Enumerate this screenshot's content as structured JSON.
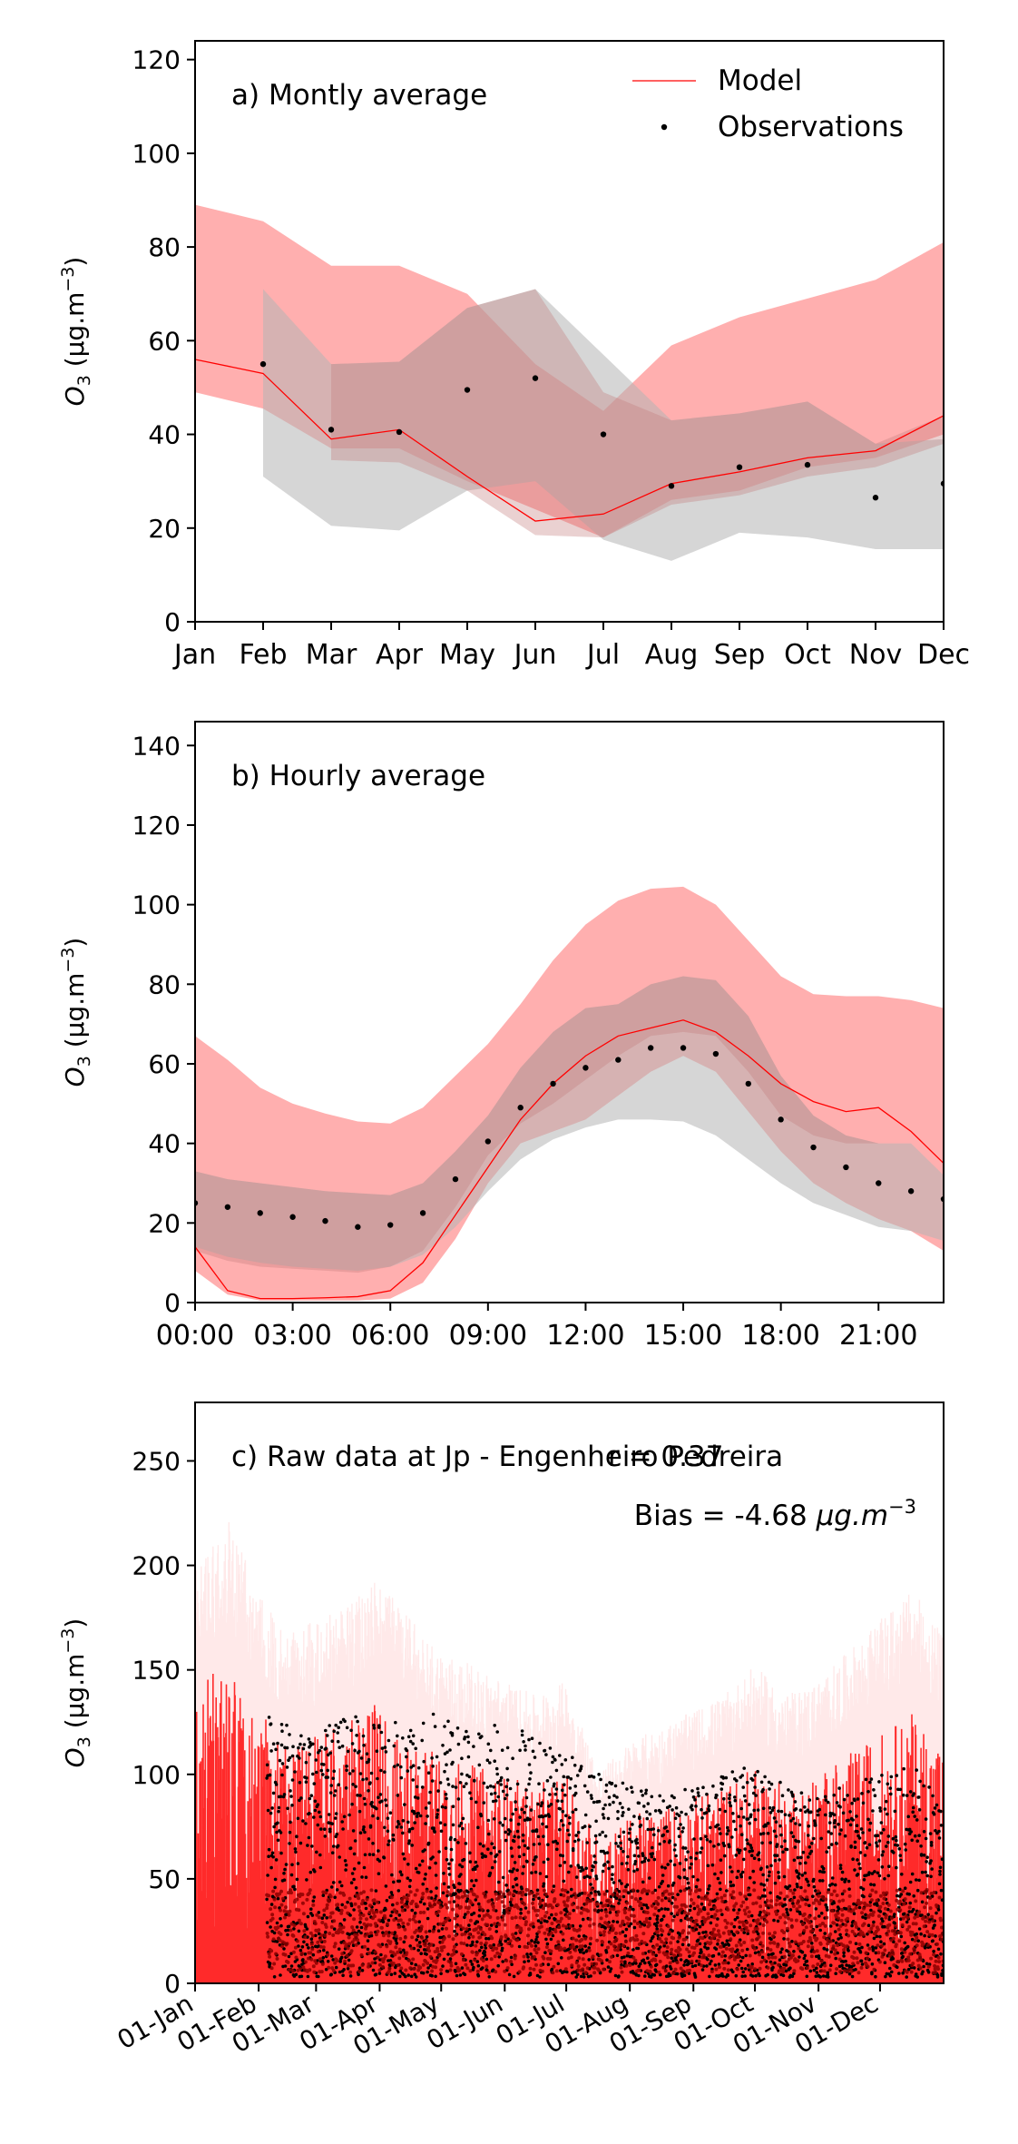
{
  "chart_data": [
    {
      "type": "line",
      "panel_label": "a) Montly average",
      "ylabel": "O",
      "ylabel_sub": "3",
      "ylabel_units": " (μg.m",
      "ylabel_exp": "−3",
      "ylabel_close": ")",
      "ylim": [
        0,
        124
      ],
      "yticks": [
        0,
        20,
        40,
        60,
        80,
        100,
        120
      ],
      "ytick_labels": [
        "0",
        "20",
        "40",
        "60",
        "80",
        "100",
        "120"
      ],
      "xlim": [
        1,
        12
      ],
      "xticks": [
        1,
        2,
        3,
        4,
        5,
        6,
        7,
        8,
        9,
        10,
        11,
        12
      ],
      "xtick_labels": [
        "Jan",
        "Feb",
        "Mar",
        "Apr",
        "May",
        "Jun",
        "Jul",
        "Aug",
        "Sep",
        "Oct",
        "Nov",
        "Dec"
      ],
      "legend": {
        "position": "top-right",
        "entries": [
          "Model",
          "Observations"
        ]
      },
      "model_band_outer": {
        "x": [
          1,
          2,
          3,
          4,
          5,
          6,
          7,
          8,
          9,
          10,
          11,
          12
        ],
        "low": [
          49,
          45.5,
          37,
          37,
          30,
          24,
          18,
          26,
          28,
          33,
          35,
          40
        ],
        "high": [
          89,
          85.5,
          76,
          76,
          70,
          55,
          45,
          59,
          65,
          69,
          73,
          81
        ]
      },
      "model_band_inner": {
        "x": [
          1,
          2,
          3,
          4,
          5,
          6,
          7,
          8,
          9,
          10,
          11,
          12
        ],
        "low": [
          null,
          null,
          34.5,
          34,
          28,
          18.5,
          18,
          25,
          27,
          31,
          33,
          38
        ],
        "high": [
          null,
          null,
          55,
          55.5,
          67,
          71,
          49,
          43,
          44.5,
          47,
          38,
          44
        ]
      },
      "obs_band": {
        "x": [
          2,
          3,
          4,
          5,
          6,
          7,
          8,
          9,
          10,
          11,
          12
        ],
        "low": [
          31,
          20.5,
          19.5,
          28,
          30,
          17.5,
          13,
          19,
          18,
          15.5,
          15.5
        ],
        "high": [
          71,
          55,
          55.5,
          67,
          71,
          57,
          43,
          44.5,
          47,
          38,
          39
        ]
      },
      "model_line": {
        "x": [
          1,
          2,
          3,
          4,
          5,
          6,
          7,
          8,
          9,
          10,
          11,
          12
        ],
        "y": [
          56,
          53,
          39,
          41,
          31,
          21.5,
          23,
          29.5,
          32,
          35,
          36.5,
          44
        ]
      },
      "observations": {
        "x": [
          2,
          3,
          4,
          5,
          6,
          7,
          8,
          9,
          10,
          11,
          12
        ],
        "y": [
          55,
          41,
          40.5,
          49.5,
          52,
          40,
          29,
          33,
          33.5,
          26.5,
          29.5
        ]
      }
    },
    {
      "type": "line",
      "panel_label": "b) Hourly average",
      "ylabel": "O",
      "ylabel_sub": "3",
      "ylabel_units": " (μg.m",
      "ylabel_exp": "−3",
      "ylabel_close": ")",
      "ylim": [
        0,
        146
      ],
      "yticks": [
        0,
        20,
        40,
        60,
        80,
        100,
        120,
        140
      ],
      "ytick_labels": [
        "0",
        "20",
        "40",
        "60",
        "80",
        "100",
        "120",
        "140"
      ],
      "xlim": [
        0,
        23
      ],
      "xticks": [
        0,
        3,
        6,
        9,
        12,
        15,
        18,
        21
      ],
      "xtick_labels": [
        "00:00",
        "03:00",
        "06:00",
        "09:00",
        "12:00",
        "15:00",
        "18:00",
        "21:00"
      ],
      "model_band_outer": {
        "x": [
          0,
          1,
          2,
          3,
          4,
          5,
          6,
          7,
          8,
          9,
          10,
          11,
          12,
          13,
          14,
          15,
          16,
          17,
          18,
          19,
          20,
          21,
          22,
          23
        ],
        "low": [
          8,
          2,
          0.5,
          0.5,
          0.5,
          0.5,
          1,
          5,
          16,
          30,
          40,
          43,
          46,
          52,
          58,
          62,
          58,
          48,
          38,
          30,
          25,
          21,
          18,
          13
        ],
        "high": [
          67,
          61,
          54,
          50,
          47.5,
          45.5,
          45,
          49,
          57,
          65,
          75,
          86,
          95,
          101,
          104,
          104.5,
          100,
          91,
          82,
          77.5,
          77,
          77,
          76,
          74
        ]
      },
      "model_band_inner": {
        "x": [
          0,
          1,
          2,
          3,
          4,
          5,
          6,
          7,
          8,
          9,
          10,
          11,
          12,
          13,
          14,
          15,
          16,
          17,
          18,
          19,
          20,
          21,
          22,
          23
        ],
        "low": [
          13,
          10.5,
          9,
          8.5,
          8,
          7.5,
          9,
          13,
          24,
          37,
          45,
          50,
          56,
          62,
          67,
          68,
          67,
          58,
          47,
          42,
          40,
          40,
          40,
          32
        ],
        "high": [
          33,
          31,
          30,
          29,
          28,
          27.5,
          27,
          30,
          38,
          47,
          59,
          68,
          74,
          75,
          80,
          82,
          81,
          72,
          57,
          47,
          42,
          40,
          40,
          32
        ]
      },
      "obs_band": {
        "x": [
          0,
          1,
          2,
          3,
          4,
          5,
          6,
          7,
          8,
          9,
          10,
          11,
          12,
          13,
          14,
          15,
          16,
          17,
          18,
          19,
          20,
          21,
          22,
          23
        ],
        "low": [
          14,
          11.5,
          10,
          9,
          8.5,
          8,
          9,
          12,
          19,
          28,
          36,
          41,
          44,
          46,
          46,
          45.5,
          42,
          36,
          30,
          25,
          22,
          19,
          18,
          15.5
        ],
        "high": [
          33,
          31,
          30,
          29,
          28,
          27.5,
          27,
          30,
          38,
          47,
          59,
          68,
          74,
          75,
          80,
          82,
          81,
          72,
          57,
          47,
          42,
          40,
          40,
          32
        ]
      },
      "model_line": {
        "x": [
          0,
          1,
          2,
          3,
          4,
          5,
          6,
          7,
          8,
          9,
          10,
          11,
          12,
          13,
          14,
          15,
          16,
          17,
          18,
          19,
          20,
          21,
          22,
          23
        ],
        "y": [
          14,
          3,
          1,
          1,
          1.2,
          1.5,
          3,
          10,
          22,
          34,
          46,
          55,
          62,
          67,
          69,
          71,
          68,
          62,
          55,
          50.5,
          48,
          49,
          43,
          35
        ]
      },
      "observations": {
        "x": [
          0,
          1,
          2,
          3,
          4,
          5,
          6,
          7,
          8,
          9,
          10,
          11,
          12,
          13,
          14,
          15,
          16,
          17,
          18,
          19,
          20,
          21,
          22,
          23
        ],
        "y": [
          25,
          24,
          22.5,
          21.5,
          20.5,
          19,
          19.5,
          22.5,
          31,
          40.5,
          49,
          55,
          59,
          61,
          64,
          64,
          62.5,
          55,
          46,
          39,
          34,
          30,
          28,
          26
        ]
      }
    },
    {
      "type": "line",
      "panel_label": "c) Raw data at Jp - Engenheiro Pedreira",
      "stats": {
        "r_text": "r = 0.37",
        "bias_text": "Bias = -4.68 ",
        "bias_units": "μg.m",
        "bias_exp": "−3"
      },
      "ylabel": "O",
      "ylabel_sub": "3",
      "ylabel_units": " (μg.m",
      "ylabel_exp": "−3",
      "ylabel_close": ")",
      "ylim": [
        0,
        278
      ],
      "yticks": [
        0,
        50,
        100,
        150,
        200,
        250
      ],
      "ytick_labels": [
        "0",
        "50",
        "100",
        "150",
        "200",
        "250"
      ],
      "xlim": [
        0,
        365
      ],
      "xticks": [
        0,
        31,
        59,
        90,
        120,
        151,
        181,
        212,
        243,
        273,
        304,
        334
      ],
      "xtick_labels": [
        "01-Jan",
        "01-Feb",
        "01-Mar",
        "01-Apr",
        "01-May",
        "01-Jun",
        "01-Jul",
        "01-Aug",
        "01-Sep",
        "01-Oct",
        "01-Nov",
        "01-Dec"
      ],
      "model_envelope": {
        "x": [
          0,
          15,
          31,
          45,
          59,
          75,
          90,
          105,
          120,
          135,
          151,
          166,
          181,
          197,
          212,
          228,
          243,
          258,
          273,
          288,
          304,
          319,
          334,
          350,
          365
        ],
        "y": [
          140,
          155,
          130,
          115,
          120,
          125,
          135,
          120,
          110,
          105,
          100,
          95,
          100,
          70,
          80,
          85,
          90,
          95,
          105,
          95,
          100,
          110,
          120,
          130,
          115
        ]
      },
      "observations_envelope": {
        "x": [
          35,
          45,
          59,
          75,
          90,
          105,
          120,
          135,
          151,
          166,
          181,
          197,
          212,
          228,
          243,
          258,
          273,
          288,
          304,
          319,
          334,
          350,
          365
        ],
        "y": [
          130,
          125,
          120,
          130,
          125,
          128,
          130,
          120,
          125,
          118,
          110,
          100,
          95,
          90,
          95,
          100,
          105,
          95,
          90,
          95,
          100,
          105,
          90
        ]
      }
    }
  ]
}
